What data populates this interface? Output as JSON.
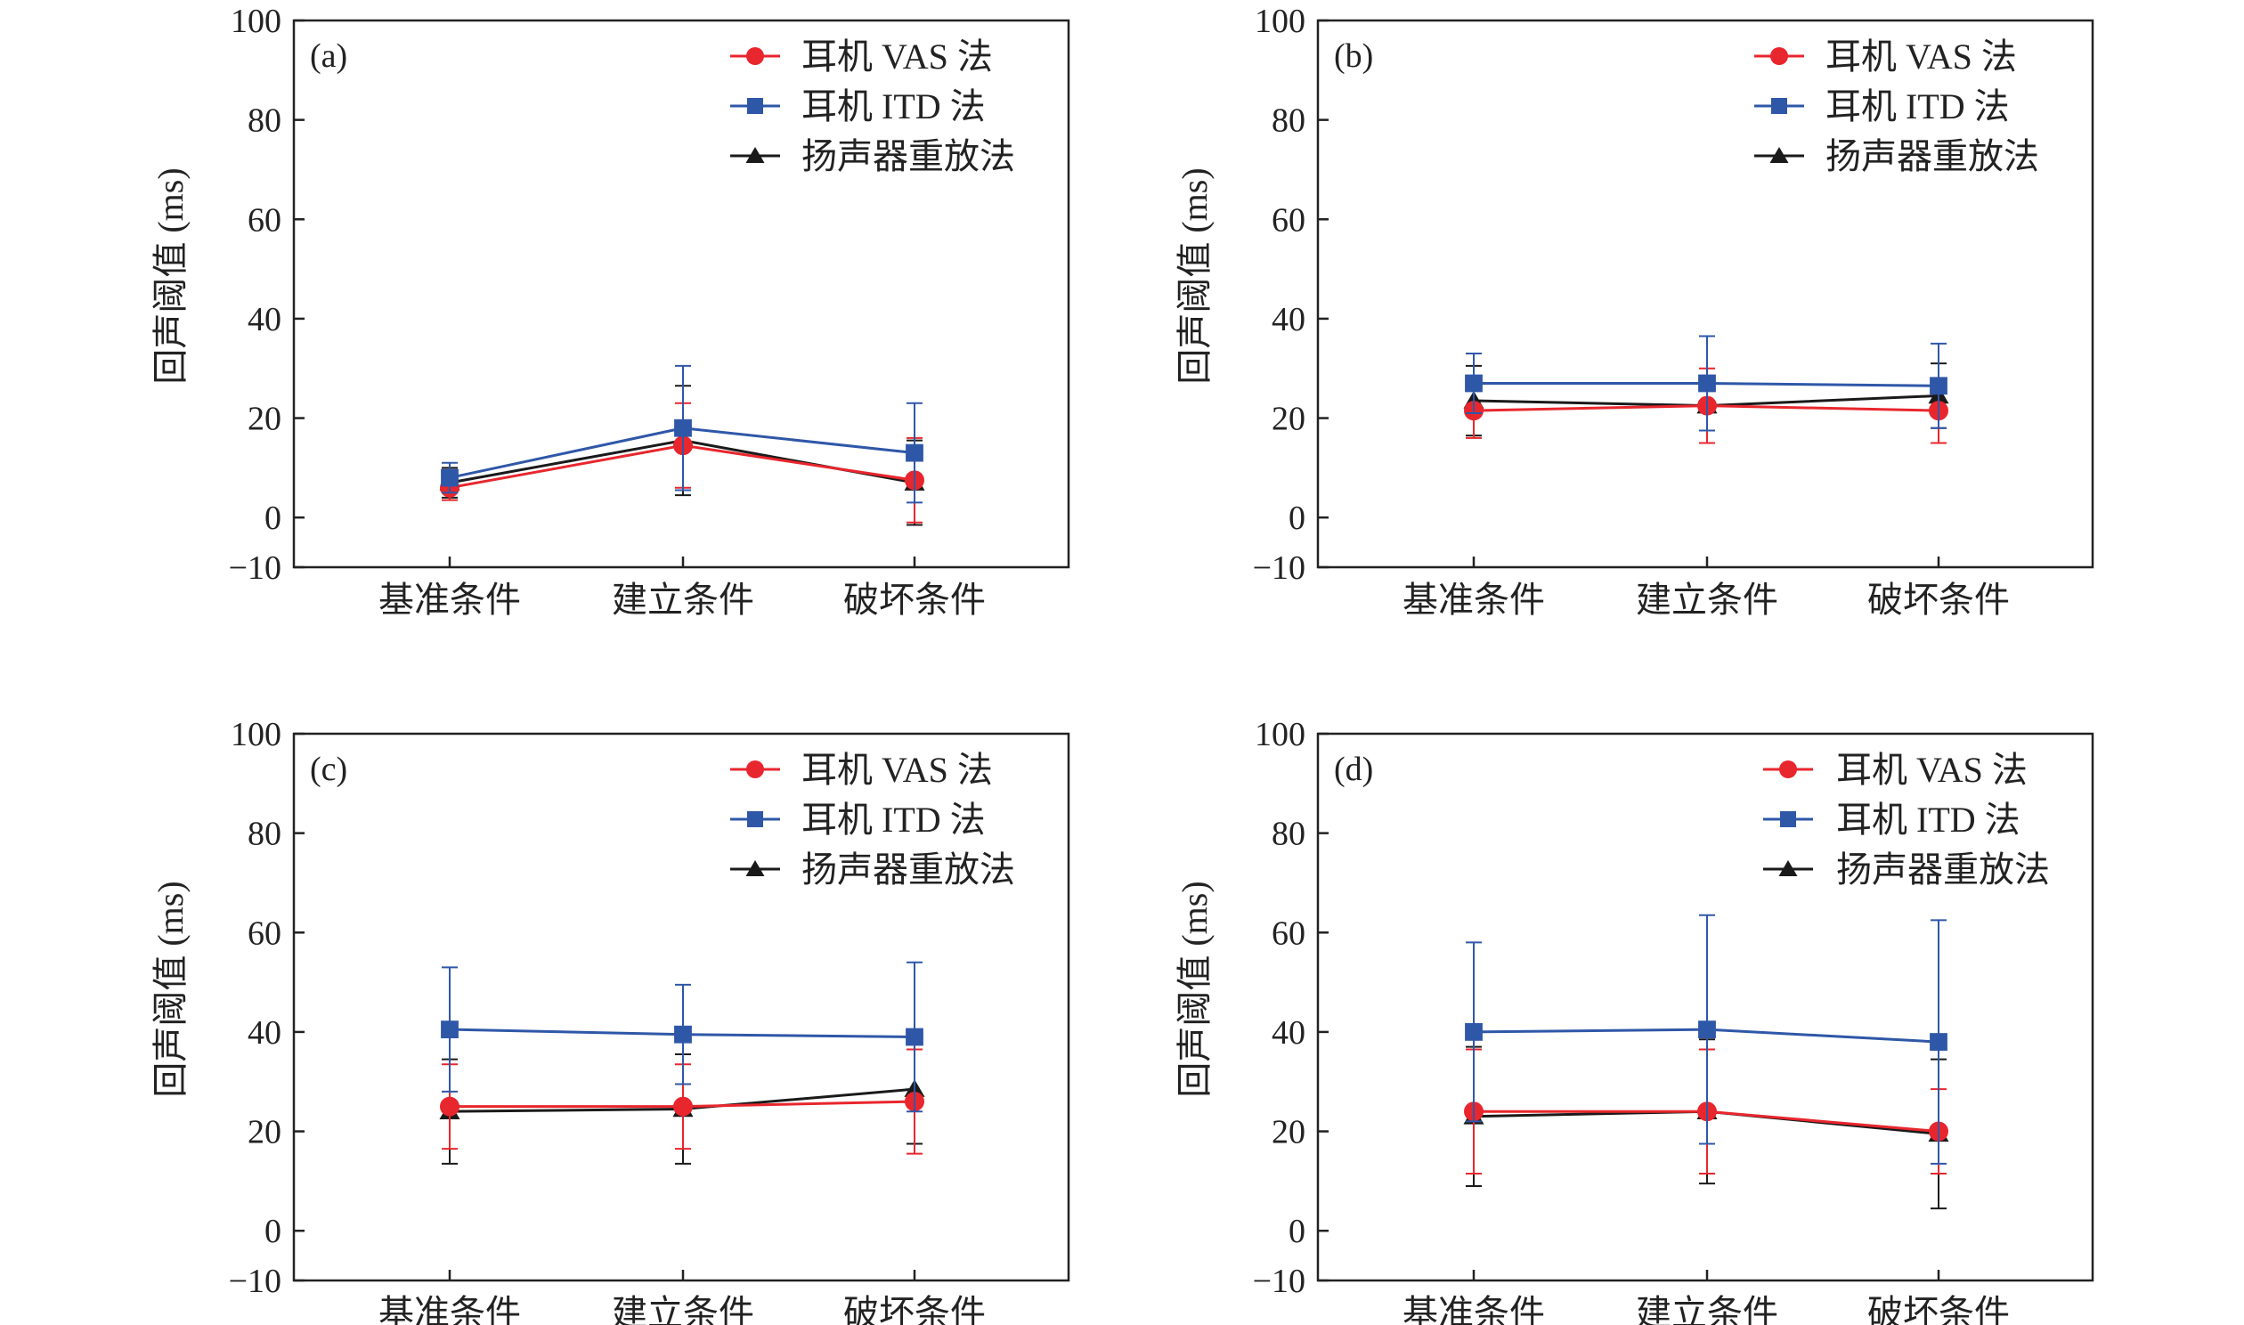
{
  "colors": {
    "vas": "#e8262d",
    "itd": "#2f57a8",
    "speaker": "#1a1a1a",
    "axis": "#222222"
  },
  "legend": [
    {
      "key": "vas",
      "label": "耳机 VAS 法",
      "marker": "circle"
    },
    {
      "key": "itd",
      "label": "耳机 ITD 法",
      "marker": "square"
    },
    {
      "key": "speaker",
      "label": "扬声器重放法",
      "marker": "triangle"
    }
  ],
  "chart_data": [
    {
      "type": "line",
      "panel_label": "(a)",
      "ylabel": "回声阈值 (ms)",
      "categories": [
        "基准条件",
        "建立条件",
        "破坏条件"
      ],
      "ylim": [
        -10,
        100
      ],
      "yticks": [
        100,
        80,
        60,
        40,
        20,
        0,
        -10
      ],
      "yticks_text": [
        "100",
        "80",
        "60",
        "40",
        "20",
        "0",
        "−10"
      ],
      "legend_position": "top-right",
      "series": [
        {
          "name": "耳机 VAS 法",
          "key": "vas",
          "values": [
            6.0,
            14.5,
            7.5
          ],
          "err": [
            2.5,
            8.5,
            8.5
          ]
        },
        {
          "name": "耳机 ITD 法",
          "key": "itd",
          "values": [
            8.0,
            18.0,
            13.0
          ],
          "err": [
            3.0,
            12.5,
            10.0
          ]
        },
        {
          "name": "扬声器重放法",
          "key": "speaker",
          "values": [
            7.0,
            15.5,
            7.0
          ],
          "err": [
            3.0,
            11.0,
            8.5
          ]
        }
      ]
    },
    {
      "type": "line",
      "panel_label": "(b)",
      "ylabel": "回声阈值 (ms)",
      "categories": [
        "基准条件",
        "建立条件",
        "破坏条件"
      ],
      "ylim": [
        -10,
        100
      ],
      "yticks": [
        100,
        80,
        60,
        40,
        20,
        0,
        -10
      ],
      "yticks_text": [
        "100",
        "80",
        "60",
        "40",
        "20",
        "0",
        "−10"
      ],
      "legend_position": "top-right",
      "series": [
        {
          "name": "耳机 VAS 法",
          "key": "vas",
          "values": [
            21.5,
            22.5,
            21.5
          ],
          "err": [
            5.5,
            7.5,
            6.5
          ]
        },
        {
          "name": "耳机 ITD 法",
          "key": "itd",
          "values": [
            27.0,
            27.0,
            26.5
          ],
          "err": [
            6.0,
            9.5,
            8.5
          ]
        },
        {
          "name": "扬声器重放法",
          "key": "speaker",
          "values": [
            23.5,
            22.5,
            24.5
          ],
          "err": [
            7.0,
            5.0,
            6.5
          ]
        }
      ]
    },
    {
      "type": "line",
      "panel_label": "(c)",
      "ylabel": "回声阈值 (ms)",
      "categories": [
        "基准条件",
        "建立条件",
        "破坏条件"
      ],
      "ylim": [
        -10,
        100
      ],
      "yticks": [
        100,
        80,
        60,
        40,
        20,
        0,
        -10
      ],
      "yticks_text": [
        "100",
        "80",
        "60",
        "40",
        "20",
        "0",
        "−10"
      ],
      "legend_position": "top-right",
      "series": [
        {
          "name": "耳机 VAS 法",
          "key": "vas",
          "values": [
            25.0,
            25.0,
            26.0
          ],
          "err": [
            8.5,
            8.5,
            10.5
          ]
        },
        {
          "name": "耳机 ITD 法",
          "key": "itd",
          "values": [
            40.5,
            39.5,
            39.0
          ],
          "err": [
            12.5,
            10.0,
            15.0
          ]
        },
        {
          "name": "扬声器重放法",
          "key": "speaker",
          "values": [
            24.0,
            24.5,
            28.5
          ],
          "err": [
            10.5,
            11.0,
            11.0
          ]
        }
      ]
    },
    {
      "type": "line",
      "panel_label": "(d)",
      "ylabel": "回声阈值 (ms)",
      "categories": [
        "基准条件",
        "建立条件",
        "破坏条件"
      ],
      "ylim": [
        -10,
        100
      ],
      "yticks": [
        100,
        80,
        60,
        40,
        20,
        0,
        -10
      ],
      "yticks_text": [
        "100",
        "80",
        "60",
        "40",
        "20",
        "0",
        "−10"
      ],
      "legend_position": "top-right",
      "series": [
        {
          "name": "耳机 VAS 法",
          "key": "vas",
          "values": [
            24.0,
            24.0,
            20.0
          ],
          "err": [
            12.5,
            12.5,
            8.5
          ]
        },
        {
          "name": "耳机 ITD 法",
          "key": "itd",
          "values": [
            40.0,
            40.5,
            38.0
          ],
          "err": [
            18.0,
            23.0,
            24.5
          ]
        },
        {
          "name": "扬声器重放法",
          "key": "speaker",
          "values": [
            23.0,
            24.0,
            19.5
          ],
          "err": [
            14.0,
            14.5,
            15.0
          ]
        }
      ]
    }
  ]
}
